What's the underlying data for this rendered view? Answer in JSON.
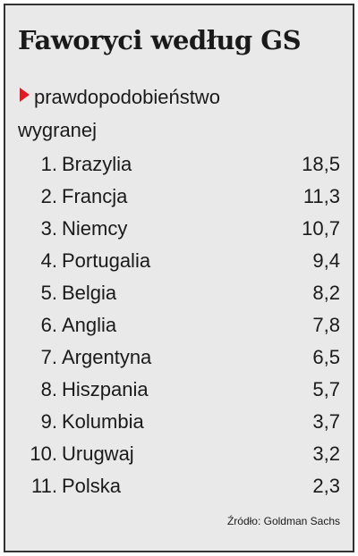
{
  "header": {
    "title": "Faworyci według GS",
    "subtitle": "prawdopodobieństwo wygranej"
  },
  "table": {
    "rows": [
      [
        "1.",
        "Brazylia",
        "18,5"
      ],
      [
        "2.",
        "Francja",
        "11,3"
      ],
      [
        "3.",
        "Niemcy",
        "10,7"
      ],
      [
        "4.",
        "Portugalia",
        "9,4"
      ],
      [
        "5.",
        "Belgia",
        "8,2"
      ],
      [
        "6.",
        "Anglia",
        "7,8"
      ],
      [
        "7.",
        "Argentyna",
        "6,5"
      ],
      [
        "8.",
        "Hiszpania",
        "5,7"
      ],
      [
        "9.",
        "Kolumbia",
        "3,7"
      ],
      [
        "10.",
        "Urugwaj",
        "3,2"
      ],
      [
        "11.",
        "Polska",
        "2,3"
      ]
    ]
  },
  "footer": {
    "source": "Źródło: Goldman Sachs"
  }
}
